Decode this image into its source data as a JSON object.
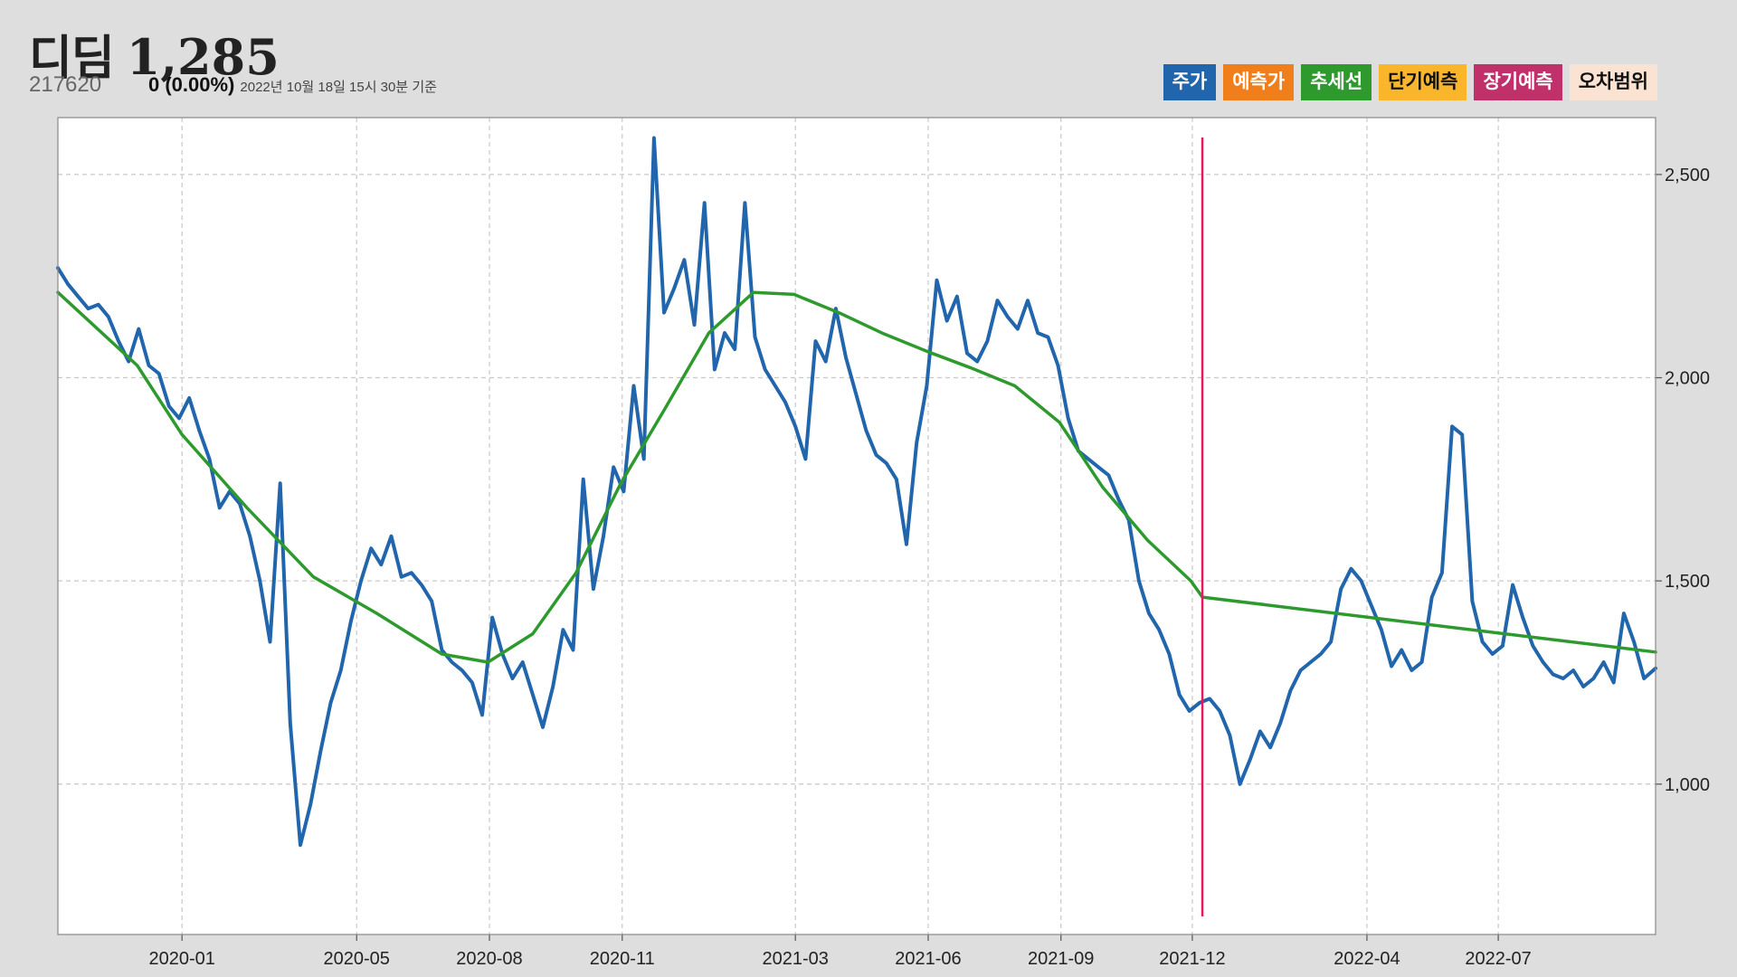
{
  "header": {
    "name": "디딤",
    "price": "1,285",
    "code": "217620",
    "change": "0 (0.00%)",
    "as_of": "2022년 10월 18일 15시 30분 기준"
  },
  "legend": [
    {
      "label": "주가",
      "bg": "#2166ac",
      "fg": "#ffffff"
    },
    {
      "label": "예측가",
      "bg": "#f07f1b",
      "fg": "#ffffff"
    },
    {
      "label": "추세선",
      "bg": "#2e9a2e",
      "fg": "#ffffff"
    },
    {
      "label": "단기예측",
      "bg": "#f9b62a",
      "fg": "#111111"
    },
    {
      "label": "장기예측",
      "bg": "#c0306a",
      "fg": "#ffffff"
    },
    {
      "label": "오차범위",
      "bg": "#fbe3d4",
      "fg": "#111111"
    }
  ],
  "colors": {
    "price_line": "#2166ac",
    "trend_line": "#2e9a2e",
    "marker_line": "#e8185e",
    "plot_bg": "#ffffff",
    "grid": "#c8c8c8"
  },
  "chart_data": {
    "type": "line",
    "x_axis": {
      "ticks": [
        "2020-01",
        "2020-05",
        "2020-08",
        "2020-11",
        "2021-03",
        "2021-06",
        "2021-09",
        "2021-12",
        "2022-04",
        "2022-07"
      ],
      "range": [
        "2019-10-07",
        "2022-10-18"
      ]
    },
    "y_axis": {
      "ticks": [
        1000,
        1500,
        2000,
        2500
      ],
      "tick_labels": [
        "1,000",
        "1,500",
        "2,000",
        "2,500"
      ],
      "range": [
        630,
        2640
      ],
      "position": "right"
    },
    "grid": true,
    "marker_date": "2021-12-08",
    "series": [
      {
        "name": "주가",
        "color": "#2166ac",
        "points": [
          [
            "2019-10-07",
            2270
          ],
          [
            "2019-10-14",
            2230
          ],
          [
            "2019-10-21",
            2200
          ],
          [
            "2019-10-28",
            2170
          ],
          [
            "2019-11-04",
            2180
          ],
          [
            "2019-11-11",
            2150
          ],
          [
            "2019-11-18",
            2090
          ],
          [
            "2019-11-25",
            2040
          ],
          [
            "2019-12-02",
            2120
          ],
          [
            "2019-12-09",
            2030
          ],
          [
            "2019-12-16",
            2010
          ],
          [
            "2019-12-23",
            1930
          ],
          [
            "2019-12-30",
            1900
          ],
          [
            "2020-01-06",
            1950
          ],
          [
            "2020-01-13",
            1870
          ],
          [
            "2020-01-20",
            1800
          ],
          [
            "2020-01-27",
            1680
          ],
          [
            "2020-02-03",
            1720
          ],
          [
            "2020-02-10",
            1690
          ],
          [
            "2020-02-17",
            1610
          ],
          [
            "2020-02-24",
            1500
          ],
          [
            "2020-03-02",
            1350
          ],
          [
            "2020-03-09",
            1740
          ],
          [
            "2020-03-16",
            1150
          ],
          [
            "2020-03-23",
            850
          ],
          [
            "2020-03-30",
            950
          ],
          [
            "2020-04-06",
            1080
          ],
          [
            "2020-04-13",
            1200
          ],
          [
            "2020-04-20",
            1280
          ],
          [
            "2020-04-27",
            1400
          ],
          [
            "2020-05-04",
            1500
          ],
          [
            "2020-05-11",
            1580
          ],
          [
            "2020-05-18",
            1540
          ],
          [
            "2020-05-25",
            1610
          ],
          [
            "2020-06-01",
            1510
          ],
          [
            "2020-06-08",
            1520
          ],
          [
            "2020-06-15",
            1490
          ],
          [
            "2020-06-22",
            1450
          ],
          [
            "2020-06-29",
            1330
          ],
          [
            "2020-07-06",
            1300
          ],
          [
            "2020-07-13",
            1280
          ],
          [
            "2020-07-20",
            1250
          ],
          [
            "2020-07-27",
            1170
          ],
          [
            "2020-08-03",
            1410
          ],
          [
            "2020-08-10",
            1320
          ],
          [
            "2020-08-17",
            1260
          ],
          [
            "2020-08-24",
            1300
          ],
          [
            "2020-08-31",
            1220
          ],
          [
            "2020-09-07",
            1140
          ],
          [
            "2020-09-14",
            1240
          ],
          [
            "2020-09-21",
            1380
          ],
          [
            "2020-09-28",
            1330
          ],
          [
            "2020-10-05",
            1750
          ],
          [
            "2020-10-12",
            1480
          ],
          [
            "2020-10-19",
            1610
          ],
          [
            "2020-10-26",
            1780
          ],
          [
            "2020-11-02",
            1720
          ],
          [
            "2020-11-09",
            1980
          ],
          [
            "2020-11-16",
            1800
          ],
          [
            "2020-11-23",
            2590
          ],
          [
            "2020-11-30",
            2160
          ],
          [
            "2020-12-07",
            2220
          ],
          [
            "2020-12-14",
            2290
          ],
          [
            "2020-12-21",
            2130
          ],
          [
            "2020-12-28",
            2430
          ],
          [
            "2021-01-04",
            2020
          ],
          [
            "2021-01-11",
            2110
          ],
          [
            "2021-01-18",
            2070
          ],
          [
            "2021-01-25",
            2430
          ],
          [
            "2021-02-01",
            2100
          ],
          [
            "2021-02-08",
            2020
          ],
          [
            "2021-02-15",
            1980
          ],
          [
            "2021-02-22",
            1940
          ],
          [
            "2021-03-01",
            1880
          ],
          [
            "2021-03-08",
            1800
          ],
          [
            "2021-03-15",
            2090
          ],
          [
            "2021-03-22",
            2040
          ],
          [
            "2021-03-29",
            2170
          ],
          [
            "2021-04-05",
            2050
          ],
          [
            "2021-04-12",
            1960
          ],
          [
            "2021-04-19",
            1870
          ],
          [
            "2021-04-26",
            1810
          ],
          [
            "2021-05-03",
            1790
          ],
          [
            "2021-05-10",
            1750
          ],
          [
            "2021-05-17",
            1590
          ],
          [
            "2021-05-24",
            1840
          ],
          [
            "2021-05-31",
            1980
          ],
          [
            "2021-06-07",
            2240
          ],
          [
            "2021-06-14",
            2140
          ],
          [
            "2021-06-21",
            2200
          ],
          [
            "2021-06-28",
            2060
          ],
          [
            "2021-07-05",
            2040
          ],
          [
            "2021-07-12",
            2090
          ],
          [
            "2021-07-19",
            2190
          ],
          [
            "2021-07-26",
            2150
          ],
          [
            "2021-08-02",
            2120
          ],
          [
            "2021-08-09",
            2190
          ],
          [
            "2021-08-16",
            2110
          ],
          [
            "2021-08-23",
            2100
          ],
          [
            "2021-08-30",
            2030
          ],
          [
            "2021-09-06",
            1900
          ],
          [
            "2021-09-13",
            1820
          ],
          [
            "2021-09-20",
            1800
          ],
          [
            "2021-09-27",
            1780
          ],
          [
            "2021-10-04",
            1760
          ],
          [
            "2021-10-11",
            1700
          ],
          [
            "2021-10-18",
            1650
          ],
          [
            "2021-10-25",
            1500
          ],
          [
            "2021-11-01",
            1420
          ],
          [
            "2021-11-08",
            1380
          ],
          [
            "2021-11-15",
            1320
          ],
          [
            "2021-11-22",
            1220
          ],
          [
            "2021-11-29",
            1180
          ],
          [
            "2021-12-06",
            1200
          ],
          [
            "2021-12-13",
            1210
          ],
          [
            "2021-12-20",
            1180
          ],
          [
            "2021-12-27",
            1120
          ],
          [
            "2022-01-03",
            1000
          ],
          [
            "2022-01-10",
            1060
          ],
          [
            "2022-01-17",
            1130
          ],
          [
            "2022-01-24",
            1090
          ],
          [
            "2022-01-31",
            1150
          ],
          [
            "2022-02-07",
            1230
          ],
          [
            "2022-02-14",
            1280
          ],
          [
            "2022-02-21",
            1300
          ],
          [
            "2022-02-28",
            1320
          ],
          [
            "2022-03-07",
            1350
          ],
          [
            "2022-03-14",
            1480
          ],
          [
            "2022-03-21",
            1530
          ],
          [
            "2022-03-28",
            1500
          ],
          [
            "2022-04-04",
            1440
          ],
          [
            "2022-04-11",
            1380
          ],
          [
            "2022-04-18",
            1290
          ],
          [
            "2022-04-25",
            1330
          ],
          [
            "2022-05-02",
            1280
          ],
          [
            "2022-05-09",
            1300
          ],
          [
            "2022-05-16",
            1460
          ],
          [
            "2022-05-23",
            1520
          ],
          [
            "2022-05-30",
            1880
          ],
          [
            "2022-06-06",
            1860
          ],
          [
            "2022-06-13",
            1450
          ],
          [
            "2022-06-20",
            1350
          ],
          [
            "2022-06-27",
            1320
          ],
          [
            "2022-07-04",
            1340
          ],
          [
            "2022-07-11",
            1490
          ],
          [
            "2022-07-18",
            1410
          ],
          [
            "2022-07-25",
            1340
          ],
          [
            "2022-08-01",
            1300
          ],
          [
            "2022-08-08",
            1270
          ],
          [
            "2022-08-15",
            1260
          ],
          [
            "2022-08-22",
            1280
          ],
          [
            "2022-08-29",
            1240
          ],
          [
            "2022-09-05",
            1260
          ],
          [
            "2022-09-12",
            1300
          ],
          [
            "2022-09-19",
            1250
          ],
          [
            "2022-09-26",
            1420
          ],
          [
            "2022-10-03",
            1350
          ],
          [
            "2022-10-10",
            1260
          ],
          [
            "2022-10-18",
            1285
          ]
        ]
      },
      {
        "name": "추세선",
        "color": "#2e9a2e",
        "points": [
          [
            "2019-10-07",
            2210
          ],
          [
            "2019-12-01",
            2030
          ],
          [
            "2020-01-01",
            1860
          ],
          [
            "2020-02-15",
            1680
          ],
          [
            "2020-04-01",
            1510
          ],
          [
            "2020-05-15",
            1420
          ],
          [
            "2020-06-29",
            1320
          ],
          [
            "2020-07-31",
            1300
          ],
          [
            "2020-08-31",
            1370
          ],
          [
            "2020-09-30",
            1520
          ],
          [
            "2020-10-31",
            1740
          ],
          [
            "2020-11-30",
            1920
          ],
          [
            "2020-12-31",
            2110
          ],
          [
            "2021-01-31",
            2210
          ],
          [
            "2021-02-28",
            2205
          ],
          [
            "2021-03-31",
            2160
          ],
          [
            "2021-04-30",
            2110
          ],
          [
            "2021-05-31",
            2065
          ],
          [
            "2021-06-30",
            2025
          ],
          [
            "2021-07-31",
            1980
          ],
          [
            "2021-08-31",
            1890
          ],
          [
            "2021-09-30",
            1730
          ],
          [
            "2021-10-31",
            1600
          ],
          [
            "2021-11-30",
            1500
          ],
          [
            "2021-12-08",
            1460
          ],
          [
            "2022-10-18",
            1325
          ]
        ]
      }
    ]
  }
}
